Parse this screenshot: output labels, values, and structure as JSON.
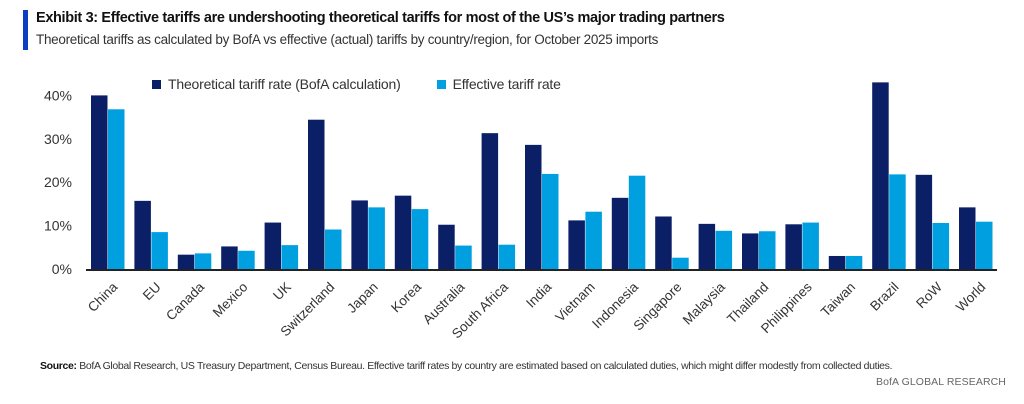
{
  "header": {
    "title": "Exhibit 3: Effective tariffs are undershooting theoretical tariffs for most of the US’s major trading partners",
    "subtitle": "Theoretical tariffs as calculated by BofA vs effective (actual) tariffs by country/region, for October 2025 imports",
    "accent_color": "#0b3fbf"
  },
  "footer": {
    "source_label": "Source:",
    "source_text": "BofA Global Research, US Treasury Department, Census Bureau. Effective tariff rates by country are estimated based on calculated duties, which might differ modestly from collected duties.",
    "brand": "BofA GLOBAL RESEARCH"
  },
  "chart_data": {
    "type": "bar",
    "title": "Exhibit 3: Effective tariffs are undershooting theoretical tariffs for most of the US’s major trading partners",
    "subtitle": "Theoretical tariffs as calculated by BofA vs effective (actual) tariffs by country/region, for October 2025 imports",
    "xlabel": "",
    "ylabel": "",
    "ylim": [
      0,
      45
    ],
    "yticks": [
      0,
      10,
      20,
      30,
      40
    ],
    "ytick_labels": [
      "0%",
      "10%",
      "20%",
      "30%",
      "40%"
    ],
    "grid": false,
    "legend_position": "top",
    "categories": [
      "China",
      "EU",
      "Canada",
      "Mexico",
      "UK",
      "Switzerland",
      "Japan",
      "Korea",
      "Australia",
      "South Africa",
      "India",
      "Vietnam",
      "Indonesia",
      "Singapore",
      "Malaysia",
      "Thailand",
      "Philippines",
      "Taiwan",
      "Brazil",
      "RoW",
      "World"
    ],
    "series": [
      {
        "name": "Theoretical tariff rate (BofA calculation)",
        "color": "#0a1f66",
        "values": [
          40.0,
          15.7,
          3.3,
          5.2,
          10.7,
          34.4,
          15.8,
          16.9,
          10.2,
          31.3,
          28.6,
          11.2,
          16.4,
          12.1,
          10.4,
          8.2,
          10.3,
          3.0,
          43.0,
          21.7,
          14.2
        ]
      },
      {
        "name": "Effective tariff rate",
        "color": "#009fe0",
        "values": [
          36.8,
          8.5,
          3.6,
          4.2,
          5.5,
          9.1,
          14.2,
          13.8,
          5.4,
          5.6,
          21.9,
          13.2,
          21.5,
          2.6,
          8.8,
          8.7,
          10.7,
          3.0,
          21.8,
          10.6,
          10.9
        ]
      }
    ]
  }
}
